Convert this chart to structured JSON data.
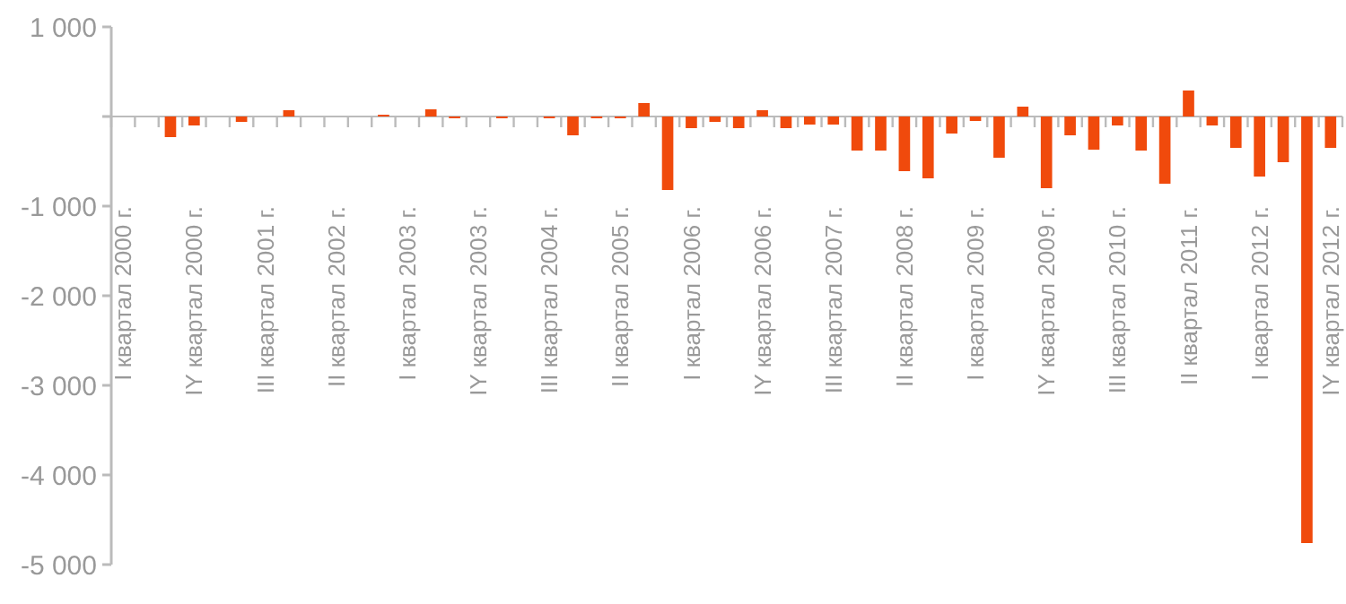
{
  "chart_data": {
    "type": "bar",
    "categories": [
      "I квартал 2000 г.",
      null,
      null,
      "IY квартал 2000 г.",
      null,
      null,
      "III квартал 2001 г.",
      null,
      null,
      "II квартал 2002 г.",
      null,
      null,
      "I квартал 2003 г.",
      null,
      null,
      "IY квартал 2003 г.",
      null,
      null,
      "III квартал 2004 г.",
      null,
      null,
      "II квартал 2005 г.",
      null,
      null,
      "I квартал 2006 г.",
      null,
      null,
      "IY квартал 2006 г.",
      null,
      null,
      "III квартал 2007 г.",
      null,
      null,
      "II квартал 2008 г.",
      null,
      null,
      "I квартал 2009 г.",
      null,
      null,
      "IY квартал 2009 г.",
      null,
      null,
      "III квартал 2010 г.",
      null,
      null,
      "II квартал 2011 г.",
      null,
      null,
      "I квартал 2012 г.",
      null,
      null,
      "IY квартал 2012 г."
    ],
    "values": [
      0,
      0,
      -230,
      -100,
      0,
      -60,
      0,
      70,
      0,
      0,
      0,
      20,
      0,
      80,
      -20,
      0,
      -20,
      0,
      -20,
      -210,
      -20,
      -20,
      150,
      -820,
      -130,
      -60,
      -130,
      70,
      -130,
      -90,
      -90,
      -380,
      -380,
      -610,
      -690,
      -190,
      -50,
      -460,
      110,
      -800,
      -210,
      -370,
      -100,
      -380,
      -750,
      290,
      -100,
      -350,
      -670,
      -510,
      -4760,
      -350
    ],
    "color": "#f04a0c",
    "ylim": [
      -5000,
      1000
    ],
    "yticks": [
      {
        "value": -5000,
        "label": "-5 000"
      },
      {
        "value": -4000,
        "label": "-4 000"
      },
      {
        "value": -3000,
        "label": "-3 000"
      },
      {
        "value": -2000,
        "label": "-2 000"
      },
      {
        "value": -1000,
        "label": "-1 000"
      },
      {
        "value": 0,
        "label": null
      },
      {
        "value": 1000,
        "label": "1 000"
      }
    ],
    "grid": false,
    "ref_lines": [
      {
        "axis": "y",
        "value": 0,
        "color": "#bbbbbb"
      }
    ]
  }
}
